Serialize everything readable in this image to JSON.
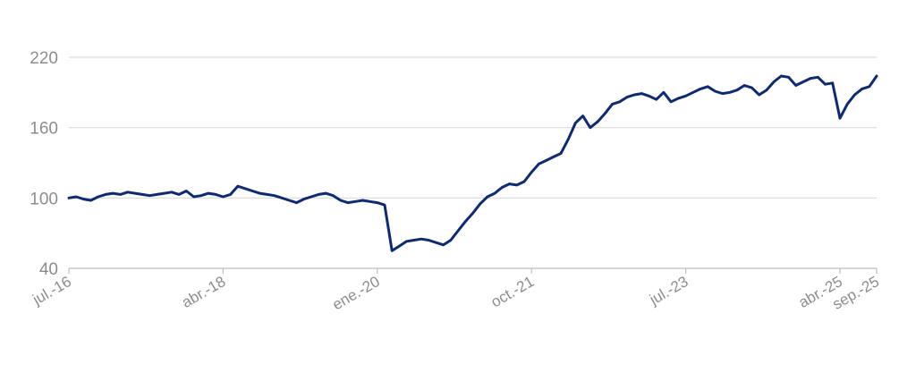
{
  "chart_data": {
    "type": "line",
    "title": "",
    "xlabel": "",
    "ylabel": "",
    "ylim": [
      40,
      220
    ],
    "y_ticks": [
      "40",
      "100",
      "160",
      "220"
    ],
    "x_tick_labels": [
      "jul.-16",
      "abr.-18",
      "ene.-20",
      "oct.-21",
      "jul.-23",
      "abr.-25",
      "sep.-25"
    ],
    "x_tick_values": [
      "2016-07",
      "2018-04",
      "2020-01",
      "2021-10",
      "2023-07",
      "2025-04",
      "2025-09"
    ],
    "xlim": [
      "2016-07",
      "2025-09"
    ],
    "grid": "horizontal",
    "legend": "none",
    "line_color": "#0d2b74",
    "grid_color": "#d9d9d9",
    "tick_color": "#8c8c8c",
    "series": [
      {
        "x": [
          "2016-07",
          "2016-08",
          "2016-09",
          "2016-10",
          "2016-11",
          "2016-12",
          "2017-01",
          "2017-02",
          "2017-03",
          "2017-04",
          "2017-05",
          "2017-06",
          "2017-07",
          "2017-08",
          "2017-09",
          "2017-10",
          "2017-11",
          "2017-12",
          "2018-01",
          "2018-02",
          "2018-03",
          "2018-04",
          "2018-05",
          "2018-06",
          "2018-07",
          "2018-08",
          "2018-09",
          "2018-10",
          "2018-11",
          "2018-12",
          "2019-01",
          "2019-02",
          "2019-03",
          "2019-04",
          "2019-05",
          "2019-06",
          "2019-07",
          "2019-08",
          "2019-09",
          "2019-10",
          "2019-11",
          "2019-12",
          "2020-01",
          "2020-02",
          "2020-03",
          "2020-04",
          "2020-05",
          "2020-06",
          "2020-07",
          "2020-08",
          "2020-09",
          "2020-10",
          "2020-11",
          "2020-12",
          "2021-01",
          "2021-02",
          "2021-03",
          "2021-04",
          "2021-05",
          "2021-06",
          "2021-07",
          "2021-08",
          "2021-09",
          "2021-10",
          "2021-11",
          "2021-12",
          "2022-01",
          "2022-02",
          "2022-03",
          "2022-04",
          "2022-05",
          "2022-06",
          "2022-07",
          "2022-08",
          "2022-09",
          "2022-10",
          "2022-11",
          "2022-12",
          "2023-01",
          "2023-02",
          "2023-03",
          "2023-04",
          "2023-05",
          "2023-06",
          "2023-07",
          "2023-08",
          "2023-09",
          "2023-10",
          "2023-11",
          "2023-12",
          "2024-01",
          "2024-02",
          "2024-03",
          "2024-04",
          "2024-05",
          "2024-06",
          "2024-07",
          "2024-08",
          "2024-09",
          "2024-10",
          "2024-11",
          "2024-12",
          "2025-01",
          "2025-02",
          "2025-03",
          "2025-04",
          "2025-05",
          "2025-06",
          "2025-07",
          "2025-08",
          "2025-09"
        ],
        "y": [
          100,
          101,
          99,
          98,
          101,
          103,
          104,
          103,
          105,
          104,
          103,
          102,
          103,
          104,
          105,
          103,
          106,
          101,
          102,
          104,
          103,
          101,
          103,
          110,
          108,
          106,
          104,
          103,
          102,
          100,
          98,
          96,
          99,
          101,
          103,
          104,
          102,
          98,
          96,
          97,
          98,
          97,
          96,
          94,
          55,
          59,
          63,
          64,
          65,
          64,
          62,
          60,
          64,
          72,
          80,
          87,
          95,
          101,
          104,
          109,
          112,
          111,
          114,
          122,
          129,
          132,
          135,
          138,
          150,
          164,
          170,
          160,
          165,
          172,
          180,
          182,
          186,
          188,
          189,
          187,
          184,
          190,
          182,
          185,
          187,
          190,
          193,
          195,
          191,
          189,
          190,
          192,
          196,
          194,
          188,
          192,
          199,
          204,
          203,
          196,
          199,
          202,
          203,
          197,
          198,
          168,
          180,
          188,
          193,
          195,
          204
        ]
      }
    ]
  }
}
